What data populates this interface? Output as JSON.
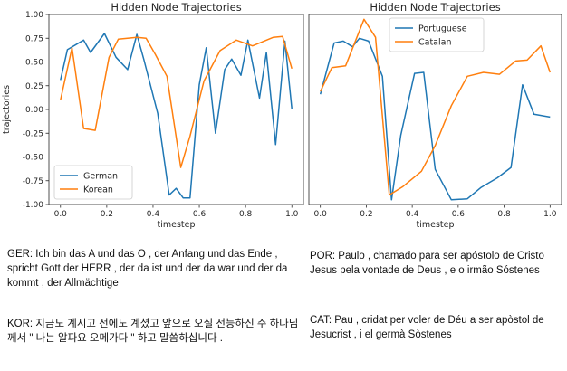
{
  "chart_data": [
    {
      "type": "line",
      "title": "Hidden Node Trajectories",
      "xlabel": "timestep",
      "ylabel": "trajectories",
      "xlim": [
        -0.05,
        1.05
      ],
      "ylim": [
        -1.0,
        1.0
      ],
      "xticks": [
        "0.0",
        "0.2",
        "0.4",
        "0.6",
        "0.8",
        "1.0"
      ],
      "yticks": [
        "1.00",
        "0.75",
        "0.50",
        "0.25",
        "0.00",
        "-0.25",
        "-0.50",
        "-0.75",
        "-1.00"
      ],
      "grid": false,
      "legend": "lower-left",
      "series": [
        {
          "name": "German",
          "color": "#1f77b4",
          "x": [
            0.0,
            0.03,
            0.1,
            0.13,
            0.19,
            0.24,
            0.29,
            0.33,
            0.36,
            0.42,
            0.47,
            0.5,
            0.53,
            0.56,
            0.6,
            0.63,
            0.67,
            0.71,
            0.74,
            0.78,
            0.81,
            0.86,
            0.89,
            0.93,
            0.97,
            1.0
          ],
          "y": [
            0.31,
            0.63,
            0.73,
            0.6,
            0.8,
            0.55,
            0.42,
            0.79,
            0.53,
            -0.04,
            -0.9,
            -0.83,
            -0.93,
            -0.93,
            0.26,
            0.65,
            -0.25,
            0.42,
            0.53,
            0.36,
            0.73,
            0.12,
            0.6,
            -0.37,
            0.72,
            0.01
          ]
        },
        {
          "name": "Korean",
          "color": "#ff7f0e",
          "x": [
            0.0,
            0.05,
            0.1,
            0.15,
            0.21,
            0.25,
            0.33,
            0.37,
            0.41,
            0.46,
            0.52,
            0.56,
            0.62,
            0.69,
            0.76,
            0.83,
            0.92,
            0.96,
            1.0
          ],
          "y": [
            0.1,
            0.65,
            -0.2,
            -0.22,
            0.55,
            0.74,
            0.76,
            0.75,
            0.58,
            0.35,
            -0.61,
            -0.28,
            0.3,
            0.62,
            0.73,
            0.67,
            0.76,
            0.77,
            0.43
          ]
        }
      ]
    },
    {
      "type": "line",
      "title": "Hidden Node Trajectories",
      "xlabel": "timestep",
      "ylabel": "",
      "xlim": [
        -0.05,
        1.05
      ],
      "ylim": [
        -1.0,
        1.0
      ],
      "xticks": [
        "0.0",
        "0.2",
        "0.4",
        "0.6",
        "0.8",
        "1.0"
      ],
      "yticks": [],
      "grid": false,
      "legend": "top-center",
      "series": [
        {
          "name": "Portuguese",
          "color": "#1f77b4",
          "x": [
            0.0,
            0.06,
            0.1,
            0.14,
            0.17,
            0.21,
            0.27,
            0.31,
            0.35,
            0.41,
            0.45,
            0.5,
            0.57,
            0.64,
            0.7,
            0.77,
            0.83,
            0.88,
            0.93,
            1.0
          ],
          "y": [
            0.16,
            0.7,
            0.72,
            0.66,
            0.75,
            0.72,
            0.35,
            -0.95,
            -0.27,
            0.38,
            0.39,
            -0.63,
            -0.95,
            -0.94,
            -0.82,
            -0.72,
            -0.61,
            0.26,
            -0.05,
            -0.08
          ]
        },
        {
          "name": "Catalan",
          "color": "#ff7f0e",
          "x": [
            0.0,
            0.05,
            0.11,
            0.19,
            0.24,
            0.3,
            0.36,
            0.44,
            0.5,
            0.57,
            0.64,
            0.71,
            0.78,
            0.85,
            0.9,
            0.96,
            1.0
          ],
          "y": [
            0.19,
            0.44,
            0.46,
            0.95,
            0.76,
            -0.9,
            -0.81,
            -0.65,
            -0.38,
            0.04,
            0.35,
            0.39,
            0.37,
            0.51,
            0.52,
            0.67,
            0.39
          ]
        }
      ]
    }
  ],
  "captions": {
    "ger": "GER: Ich bin das A und das O , der Anfang und das Ende , spricht Gott der HERR , der da ist und der da war und der da kommt , der Allmächtige",
    "kor": "KOR: 지금도 계시고 전에도 계셨고 앞으로 오실 전능하신 주 하나님께서 \" 나는 알파요 오메가다 \" 하고 말씀하십니다 .",
    "por": "POR: Paulo , chamado para ser apóstolo de Cristo Jesus pela vontade de Deus , e o irmão Sóstenes",
    "cat": "CAT: Pau , cridat per voler de Déu a ser apòstol de Jesucrist , i el germà Sòstenes"
  }
}
